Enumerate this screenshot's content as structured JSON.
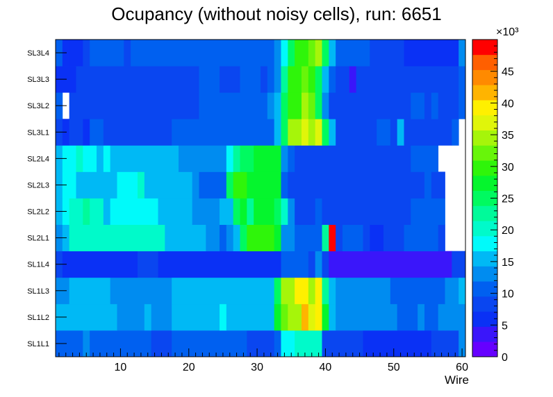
{
  "chart_data": {
    "type": "heatmap",
    "title": "Ocupancy (without noisy cells), run: 6651",
    "xlabel": "Wire",
    "ylabel": "",
    "xlim": [
      0.5,
      60.5
    ],
    "x_ticks": [
      "10",
      "20",
      "30",
      "40",
      "50",
      "60"
    ],
    "y_categories": [
      "SL1L1",
      "SL1L2",
      "SL1L3",
      "SL1L4",
      "SL2L1",
      "SL2L2",
      "SL2L3",
      "SL2L4",
      "SL3L1",
      "SL3L2",
      "SL3L3",
      "SL3L4"
    ],
    "z_range": [
      0,
      50000
    ],
    "colorbar_ticks": [
      "0",
      "5",
      "10",
      "15",
      "20",
      "25",
      "30",
      "35",
      "40",
      "45"
    ],
    "colorbar_exponent": "×10³",
    "z_units": "thousands",
    "rows": [
      {
        "layer": "SL1L1",
        "segments": [
          [
            1,
            4,
            11
          ],
          [
            5,
            5,
            12
          ],
          [
            6,
            10,
            11
          ],
          [
            11,
            11,
            9
          ],
          [
            12,
            12,
            11
          ],
          [
            13,
            14,
            9
          ],
          [
            15,
            17,
            7
          ],
          [
            18,
            28,
            11
          ],
          [
            29,
            32,
            8
          ],
          [
            33,
            33,
            11
          ],
          [
            34,
            35,
            18
          ],
          [
            36,
            37,
            19
          ],
          [
            38,
            39,
            21
          ],
          [
            40,
            45,
            8
          ],
          [
            46,
            55,
            6
          ],
          [
            56,
            59,
            8
          ],
          [
            60,
            60,
            12
          ]
        ]
      },
      {
        "layer": "SL1L2",
        "segments": [
          [
            1,
            9,
            15
          ],
          [
            10,
            13,
            12
          ],
          [
            14,
            14,
            16
          ],
          [
            15,
            15,
            13
          ],
          [
            16,
            17,
            12
          ],
          [
            18,
            24,
            15
          ],
          [
            25,
            25,
            18
          ],
          [
            26,
            32,
            15
          ],
          [
            33,
            33,
            28
          ],
          [
            34,
            34,
            33
          ],
          [
            35,
            36,
            36
          ],
          [
            37,
            37,
            42
          ],
          [
            38,
            38,
            38
          ],
          [
            39,
            39,
            41
          ],
          [
            40,
            40,
            28
          ],
          [
            41,
            41,
            16
          ],
          [
            42,
            50,
            13
          ],
          [
            51,
            53,
            11
          ],
          [
            54,
            54,
            13
          ],
          [
            55,
            56,
            11
          ],
          [
            57,
            57,
            13
          ],
          [
            58,
            60,
            12
          ]
        ]
      },
      {
        "layer": "SL1L3",
        "segments": [
          [
            1,
            2,
            12
          ],
          [
            3,
            4,
            14
          ],
          [
            5,
            8,
            15
          ],
          [
            9,
            17,
            13
          ],
          [
            18,
            32,
            15
          ],
          [
            33,
            33,
            26
          ],
          [
            34,
            35,
            34
          ],
          [
            36,
            37,
            39
          ],
          [
            38,
            38,
            35
          ],
          [
            39,
            39,
            39
          ],
          [
            40,
            40,
            23
          ],
          [
            41,
            41,
            16
          ],
          [
            42,
            49,
            13
          ],
          [
            50,
            57,
            11
          ],
          [
            58,
            59,
            12
          ],
          [
            60,
            60,
            15
          ]
        ]
      },
      {
        "layer": "SL1L4",
        "segments": [
          [
            1,
            1,
            8
          ],
          [
            2,
            12,
            5
          ],
          [
            13,
            15,
            8
          ],
          [
            16,
            33,
            5
          ],
          [
            34,
            37,
            11
          ],
          [
            38,
            38,
            8
          ],
          [
            39,
            39,
            12
          ],
          [
            40,
            40,
            8
          ],
          [
            41,
            54,
            3
          ],
          [
            55,
            55,
            2
          ],
          [
            56,
            58,
            3
          ],
          [
            59,
            60,
            7
          ]
        ]
      },
      {
        "layer": "SL2L1",
        "segments": [
          [
            1,
            1,
            12
          ],
          [
            2,
            2,
            15
          ],
          [
            3,
            5,
            21
          ],
          [
            6,
            16,
            19
          ],
          [
            17,
            22,
            15
          ],
          [
            23,
            24,
            13
          ],
          [
            25,
            25,
            10
          ],
          [
            26,
            26,
            13
          ],
          [
            27,
            27,
            16
          ],
          [
            28,
            28,
            24
          ],
          [
            29,
            32,
            29
          ],
          [
            33,
            33,
            28
          ],
          [
            34,
            34,
            13
          ],
          [
            35,
            35,
            12
          ],
          [
            36,
            38,
            10
          ],
          [
            39,
            39,
            9
          ],
          [
            40,
            40,
            23
          ],
          [
            41,
            41,
            49
          ],
          [
            42,
            42,
            7
          ],
          [
            43,
            45,
            9
          ],
          [
            46,
            46,
            7
          ],
          [
            47,
            48,
            6
          ],
          [
            49,
            51,
            7
          ],
          [
            52,
            56,
            9
          ],
          [
            57,
            57,
            8
          ]
        ]
      },
      {
        "layer": "SL2L2",
        "segments": [
          [
            1,
            1,
            15
          ],
          [
            2,
            2,
            17
          ],
          [
            3,
            4,
            21
          ],
          [
            5,
            5,
            23
          ],
          [
            6,
            7,
            19
          ],
          [
            8,
            8,
            16
          ],
          [
            9,
            15,
            18
          ],
          [
            16,
            18,
            16
          ],
          [
            19,
            20,
            15
          ],
          [
            21,
            22,
            13
          ],
          [
            23,
            24,
            12
          ],
          [
            25,
            26,
            15
          ],
          [
            27,
            27,
            24
          ],
          [
            28,
            28,
            27
          ],
          [
            29,
            29,
            22
          ],
          [
            30,
            32,
            28
          ],
          [
            33,
            33,
            24
          ],
          [
            34,
            34,
            21
          ],
          [
            35,
            35,
            13
          ],
          [
            36,
            38,
            8
          ],
          [
            39,
            39,
            9
          ],
          [
            40,
            52,
            7
          ],
          [
            53,
            57,
            9
          ]
        ]
      },
      {
        "layer": "SL2L3",
        "segments": [
          [
            1,
            1,
            15
          ],
          [
            2,
            3,
            17
          ],
          [
            4,
            9,
            16
          ],
          [
            10,
            10,
            18
          ],
          [
            11,
            12,
            17
          ],
          [
            13,
            13,
            19
          ],
          [
            14,
            19,
            16
          ],
          [
            20,
            20,
            14
          ],
          [
            21,
            21,
            13
          ],
          [
            22,
            25,
            11
          ],
          [
            26,
            26,
            24
          ],
          [
            27,
            28,
            29
          ],
          [
            29,
            32,
            28
          ],
          [
            33,
            33,
            27
          ],
          [
            34,
            34,
            10
          ],
          [
            35,
            35,
            8
          ],
          [
            36,
            54,
            7
          ],
          [
            55,
            55,
            9
          ],
          [
            56,
            57,
            8
          ]
        ]
      },
      {
        "layer": "SL2L4",
        "segments": [
          [
            1,
            1,
            15
          ],
          [
            2,
            3,
            17
          ],
          [
            4,
            4,
            19
          ],
          [
            5,
            6,
            18
          ],
          [
            7,
            7,
            16
          ],
          [
            8,
            8,
            17
          ],
          [
            9,
            18,
            16
          ],
          [
            19,
            20,
            13
          ],
          [
            21,
            25,
            12
          ],
          [
            26,
            26,
            18
          ],
          [
            27,
            27,
            23
          ],
          [
            28,
            28,
            25
          ],
          [
            29,
            29,
            26
          ],
          [
            30,
            32,
            28
          ],
          [
            33,
            33,
            27
          ],
          [
            34,
            34,
            12
          ],
          [
            35,
            35,
            9
          ],
          [
            36,
            52,
            7
          ],
          [
            53,
            55,
            9
          ],
          [
            56,
            56,
            11
          ]
        ]
      },
      {
        "layer": "SL3L1",
        "segments": [
          [
            1,
            1,
            8
          ],
          [
            2,
            2,
            6
          ],
          [
            3,
            4,
            8
          ],
          [
            5,
            5,
            6
          ],
          [
            6,
            7,
            9
          ],
          [
            8,
            17,
            8
          ],
          [
            18,
            32,
            11
          ],
          [
            33,
            33,
            14
          ],
          [
            34,
            34,
            26
          ],
          [
            35,
            35,
            35
          ],
          [
            36,
            36,
            34
          ],
          [
            37,
            37,
            38
          ],
          [
            38,
            38,
            36
          ],
          [
            39,
            39,
            38
          ],
          [
            40,
            40,
            25
          ],
          [
            41,
            41,
            14
          ],
          [
            42,
            47,
            8
          ],
          [
            48,
            48,
            10
          ],
          [
            49,
            49,
            9
          ],
          [
            50,
            50,
            8
          ],
          [
            51,
            51,
            16
          ],
          [
            52,
            52,
            8
          ],
          [
            53,
            58,
            7
          ],
          [
            59,
            59,
            9
          ]
        ]
      },
      {
        "layer": "SL3L2",
        "segments": [
          [
            1,
            1,
            9
          ],
          [
            2,
            2,
            0
          ],
          [
            3,
            3,
            7
          ],
          [
            4,
            21,
            8
          ],
          [
            22,
            31,
            11
          ],
          [
            32,
            32,
            12
          ],
          [
            33,
            33,
            14
          ],
          [
            34,
            34,
            25
          ],
          [
            35,
            35,
            29
          ],
          [
            36,
            36,
            30
          ],
          [
            37,
            37,
            34
          ],
          [
            38,
            38,
            32
          ],
          [
            39,
            39,
            25
          ],
          [
            40,
            40,
            13
          ],
          [
            41,
            52,
            7
          ],
          [
            53,
            54,
            9
          ],
          [
            55,
            55,
            7
          ],
          [
            56,
            56,
            9
          ],
          [
            57,
            58,
            7
          ],
          [
            59,
            59,
            8
          ],
          [
            60,
            60,
            10
          ]
        ]
      },
      {
        "layer": "SL3L3",
        "segments": [
          [
            1,
            3,
            6
          ],
          [
            4,
            21,
            8
          ],
          [
            22,
            24,
            11
          ],
          [
            25,
            27,
            8
          ],
          [
            28,
            30,
            9
          ],
          [
            31,
            31,
            8
          ],
          [
            32,
            32,
            11
          ],
          [
            33,
            33,
            13
          ],
          [
            34,
            34,
            23
          ],
          [
            35,
            35,
            29
          ],
          [
            36,
            36,
            31
          ],
          [
            37,
            37,
            33
          ],
          [
            38,
            38,
            30
          ],
          [
            39,
            39,
            26
          ],
          [
            40,
            40,
            16
          ],
          [
            41,
            41,
            9
          ],
          [
            42,
            43,
            8
          ],
          [
            44,
            44,
            2
          ],
          [
            45,
            51,
            8
          ],
          [
            52,
            58,
            7
          ],
          [
            59,
            59,
            8
          ],
          [
            60,
            60,
            10
          ]
        ]
      },
      {
        "layer": "SL3L4",
        "segments": [
          [
            1,
            1,
            9
          ],
          [
            2,
            2,
            5
          ],
          [
            3,
            4,
            6
          ],
          [
            5,
            5,
            7
          ],
          [
            6,
            10,
            10
          ],
          [
            11,
            11,
            7
          ],
          [
            12,
            32,
            9
          ],
          [
            33,
            33,
            12
          ],
          [
            34,
            34,
            18
          ],
          [
            35,
            35,
            26
          ],
          [
            36,
            36,
            30
          ],
          [
            37,
            37,
            29
          ],
          [
            38,
            38,
            33
          ],
          [
            39,
            39,
            36
          ],
          [
            40,
            40,
            24
          ],
          [
            41,
            41,
            16
          ],
          [
            42,
            46,
            9
          ],
          [
            47,
            51,
            7
          ],
          [
            52,
            59,
            6
          ],
          [
            60,
            60,
            13
          ]
        ]
      }
    ]
  }
}
